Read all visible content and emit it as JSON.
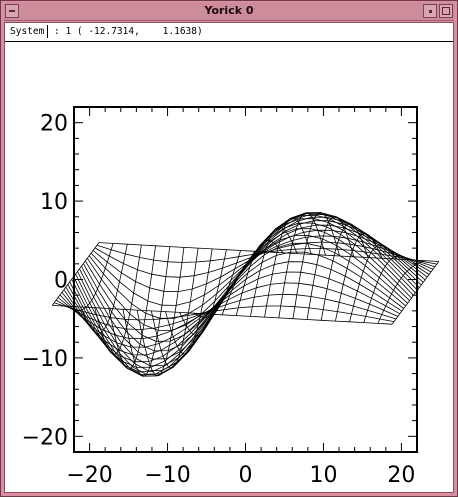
{
  "window": {
    "title": "Yorick 0"
  },
  "status": {
    "label": "System",
    "text": ": 1 ( -12.7314,    1.1638)"
  },
  "chart_data": {
    "type": "surface",
    "x_ticks": [
      "−20",
      "−10",
      "0",
      "10",
      "20"
    ],
    "y_ticks": [
      "20",
      "10",
      "0",
      "−10",
      "−20"
    ],
    "xlim": [
      -22,
      22
    ],
    "ylim": [
      -22,
      22
    ],
    "tick_values": [
      -20,
      -10,
      0,
      10,
      20
    ]
  }
}
